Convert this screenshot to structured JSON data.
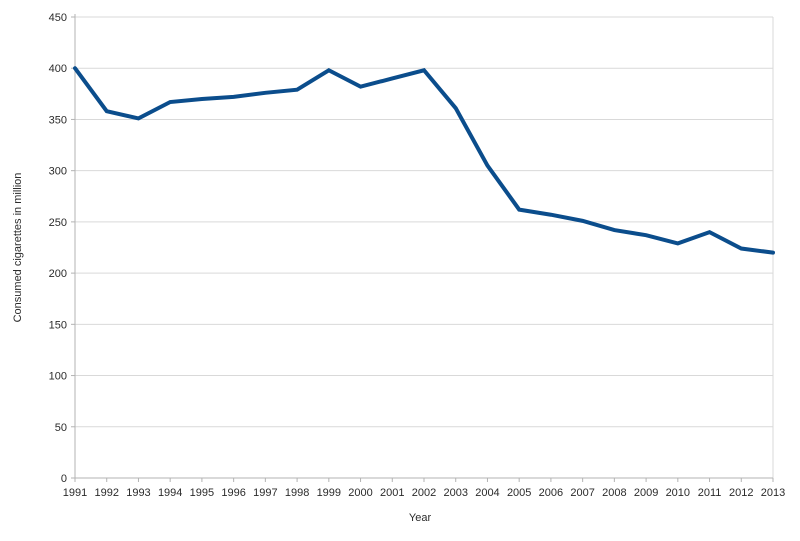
{
  "chart_data": {
    "type": "line",
    "title": "",
    "xlabel": "Year",
    "ylabel": "Consumed cigarettes in million",
    "categories": [
      "1991",
      "1992",
      "1993",
      "1994",
      "1995",
      "1996",
      "1997",
      "1998",
      "1999",
      "2000",
      "2001",
      "2002",
      "2003",
      "2004",
      "2005",
      "2006",
      "2007",
      "2008",
      "2009",
      "2010",
      "2011",
      "2012",
      "2013"
    ],
    "values": [
      400,
      358,
      351,
      367,
      370,
      372,
      376,
      379,
      398,
      382,
      390,
      398,
      361,
      305,
      262,
      257,
      251,
      242,
      237,
      229,
      240,
      224,
      220
    ],
    "ylim": [
      0,
      450
    ],
    "ytick_step": 50,
    "ytick_labels": [
      "0",
      "50",
      "100",
      "150",
      "200",
      "250",
      "300",
      "350",
      "400",
      "450"
    ],
    "grid": true,
    "legend_position": "none",
    "colors": {
      "line": "#0b4d8c",
      "gridline": "#d9d9d9",
      "axis": "#b3b3b3",
      "text": "#2b2b2b",
      "background": "#ffffff"
    }
  }
}
